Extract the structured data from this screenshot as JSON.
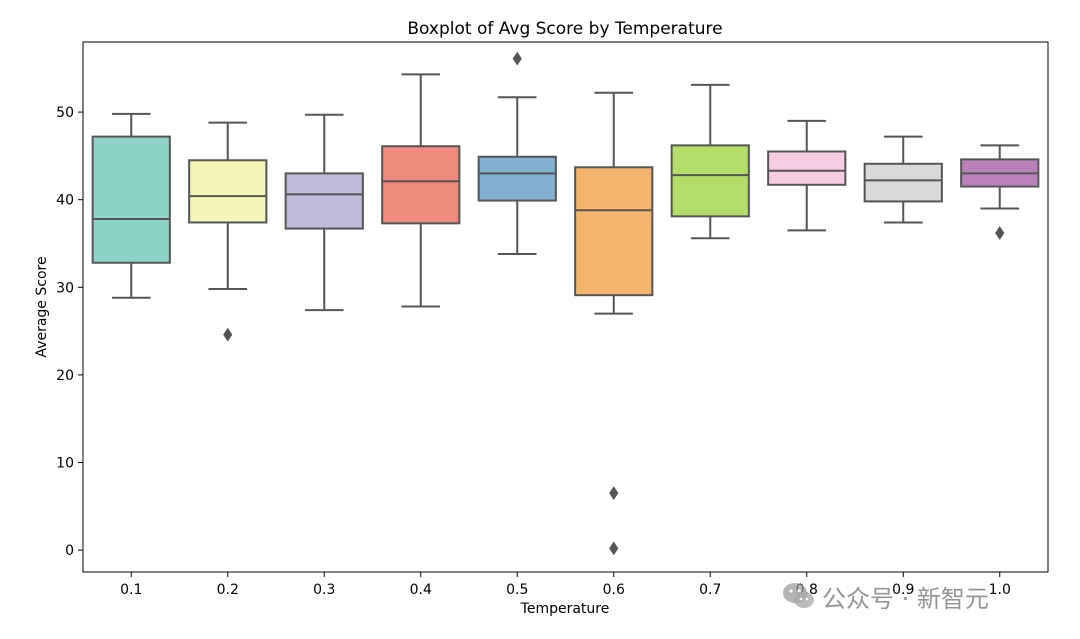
{
  "chart_data": {
    "type": "boxplot",
    "title": "Boxplot of Avg Score by Temperature",
    "xlabel": "Temperature",
    "ylabel": "Average Score",
    "ylim": [
      -2.5,
      58
    ],
    "yticks": [
      0,
      10,
      20,
      30,
      40,
      50
    ],
    "grid": false,
    "categories": [
      "0.1",
      "0.2",
      "0.3",
      "0.4",
      "0.5",
      "0.6",
      "0.7",
      "0.8",
      "0.9",
      "1.0"
    ],
    "boxes": [
      {
        "category": "0.1",
        "whisker_low": 28.8,
        "q1": 32.8,
        "median": 37.8,
        "q3": 47.2,
        "whisker_high": 49.8,
        "outliers": [],
        "color": "#8dd3c7"
      },
      {
        "category": "0.2",
        "whisker_low": 29.8,
        "q1": 37.4,
        "median": 40.4,
        "q3": 44.5,
        "whisker_high": 48.8,
        "outliers": [
          24.6
        ],
        "color": "#f5f5b8"
      },
      {
        "category": "0.3",
        "whisker_low": 27.4,
        "q1": 36.7,
        "median": 40.6,
        "q3": 43.0,
        "whisker_high": 49.7,
        "outliers": [],
        "color": "#bebada"
      },
      {
        "category": "0.4",
        "whisker_low": 27.8,
        "q1": 37.3,
        "median": 42.1,
        "q3": 46.1,
        "whisker_high": 54.3,
        "outliers": [],
        "color": "#ee8a7e"
      },
      {
        "category": "0.5",
        "whisker_low": 33.8,
        "q1": 39.9,
        "median": 43.0,
        "q3": 44.9,
        "whisker_high": 51.7,
        "outliers": [
          56.1
        ],
        "color": "#80b1d3"
      },
      {
        "category": "0.6",
        "whisker_low": 27.0,
        "q1": 29.1,
        "median": 38.8,
        "q3": 43.7,
        "whisker_high": 52.2,
        "outliers": [
          6.5,
          0.2
        ],
        "color": "#f3b56e"
      },
      {
        "category": "0.7",
        "whisker_low": 35.6,
        "q1": 38.1,
        "median": 42.8,
        "q3": 46.2,
        "whisker_high": 53.1,
        "outliers": [],
        "color": "#b3de69"
      },
      {
        "category": "0.8",
        "whisker_low": 36.5,
        "q1": 41.7,
        "median": 43.3,
        "q3": 45.5,
        "whisker_high": 49.0,
        "outliers": [],
        "color": "#f7cde3"
      },
      {
        "category": "0.9",
        "whisker_low": 37.4,
        "q1": 39.8,
        "median": 42.2,
        "q3": 44.1,
        "whisker_high": 47.2,
        "outliers": [],
        "color": "#d9d9d9"
      },
      {
        "category": "1.0",
        "whisker_low": 39.0,
        "q1": 41.5,
        "median": 43.0,
        "q3": 44.6,
        "whisker_high": 46.2,
        "outliers": [
          36.2
        ],
        "color": "#bc80bd"
      }
    ]
  },
  "watermark": {
    "text": "公众号 · 新智元",
    "icon": "wechat-icon"
  }
}
